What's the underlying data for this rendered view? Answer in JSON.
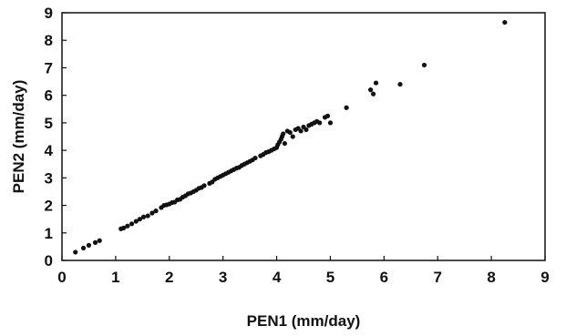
{
  "chart_data": {
    "type": "scatter",
    "title": "",
    "xlabel": "PEN1 (mm/day)",
    "ylabel": "PEN2 (mm/day)",
    "xlim": [
      0,
      9
    ],
    "ylim": [
      0,
      9
    ],
    "x_ticks": [
      0,
      1,
      2,
      3,
      4,
      5,
      6,
      7,
      8,
      9
    ],
    "y_ticks": [
      0,
      1,
      2,
      3,
      4,
      5,
      6,
      7,
      8,
      9
    ],
    "grid": false,
    "legend": "none",
    "marker_color": "#111111",
    "series": [
      {
        "points": [
          [
            0.25,
            0.3
          ],
          [
            0.4,
            0.45
          ],
          [
            0.5,
            0.55
          ],
          [
            0.62,
            0.65
          ],
          [
            0.7,
            0.72
          ],
          [
            1.1,
            1.15
          ],
          [
            1.15,
            1.18
          ],
          [
            1.22,
            1.25
          ],
          [
            1.3,
            1.33
          ],
          [
            1.38,
            1.42
          ],
          [
            1.45,
            1.5
          ],
          [
            1.52,
            1.58
          ],
          [
            1.6,
            1.62
          ],
          [
            1.68,
            1.72
          ],
          [
            1.75,
            1.8
          ],
          [
            1.85,
            1.92
          ],
          [
            1.9,
            2.0
          ],
          [
            1.95,
            2.02
          ],
          [
            2.0,
            2.05
          ],
          [
            2.05,
            2.1
          ],
          [
            2.1,
            2.12
          ],
          [
            2.15,
            2.2
          ],
          [
            2.2,
            2.22
          ],
          [
            2.25,
            2.3
          ],
          [
            2.3,
            2.35
          ],
          [
            2.35,
            2.42
          ],
          [
            2.4,
            2.45
          ],
          [
            2.45,
            2.5
          ],
          [
            2.5,
            2.55
          ],
          [
            2.55,
            2.62
          ],
          [
            2.6,
            2.65
          ],
          [
            2.65,
            2.72
          ],
          [
            2.75,
            2.8
          ],
          [
            2.8,
            2.85
          ],
          [
            2.85,
            2.95
          ],
          [
            2.9,
            3.0
          ],
          [
            2.95,
            3.05
          ],
          [
            3.0,
            3.1
          ],
          [
            3.05,
            3.15
          ],
          [
            3.1,
            3.2
          ],
          [
            3.15,
            3.25
          ],
          [
            3.2,
            3.3
          ],
          [
            3.25,
            3.35
          ],
          [
            3.3,
            3.38
          ],
          [
            3.35,
            3.45
          ],
          [
            3.4,
            3.5
          ],
          [
            3.45,
            3.55
          ],
          [
            3.5,
            3.6
          ],
          [
            3.55,
            3.65
          ],
          [
            3.6,
            3.72
          ],
          [
            3.7,
            3.8
          ],
          [
            3.75,
            3.85
          ],
          [
            3.8,
            3.92
          ],
          [
            3.85,
            3.95
          ],
          [
            3.9,
            4.0
          ],
          [
            3.95,
            4.05
          ],
          [
            4.0,
            4.1
          ],
          [
            4.02,
            4.2
          ],
          [
            4.05,
            4.3
          ],
          [
            4.08,
            4.4
          ],
          [
            4.1,
            4.5
          ],
          [
            4.12,
            4.6
          ],
          [
            4.15,
            4.25
          ],
          [
            4.2,
            4.7
          ],
          [
            4.25,
            4.65
          ],
          [
            4.3,
            4.5
          ],
          [
            4.35,
            4.75
          ],
          [
            4.4,
            4.8
          ],
          [
            4.45,
            4.7
          ],
          [
            4.5,
            4.85
          ],
          [
            4.55,
            4.75
          ],
          [
            4.6,
            4.9
          ],
          [
            4.65,
            4.95
          ],
          [
            4.7,
            5.0
          ],
          [
            4.75,
            5.05
          ],
          [
            4.8,
            5.0
          ],
          [
            4.9,
            5.2
          ],
          [
            4.95,
            5.25
          ],
          [
            5.0,
            5.0
          ],
          [
            5.3,
            5.55
          ],
          [
            5.75,
            6.2
          ],
          [
            5.8,
            6.05
          ],
          [
            5.85,
            6.45
          ],
          [
            6.3,
            6.4
          ],
          [
            6.75,
            7.1
          ],
          [
            8.25,
            8.65
          ]
        ]
      }
    ]
  }
}
